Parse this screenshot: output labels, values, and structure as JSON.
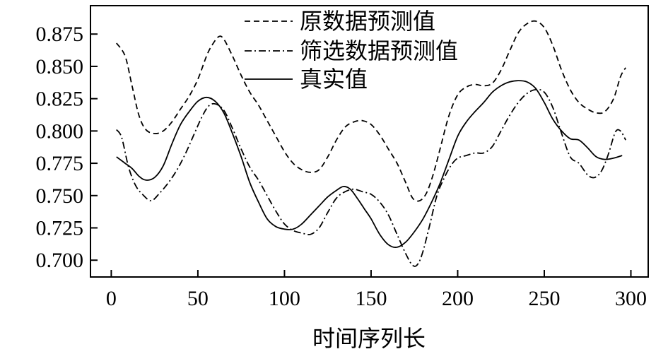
{
  "chart_data": {
    "type": "line",
    "title": "",
    "xlabel": "时间序列长",
    "ylabel": "",
    "xlim": [
      -12,
      310
    ],
    "ylim": [
      0.687,
      0.897
    ],
    "xticks": [
      0,
      50,
      100,
      150,
      200,
      250,
      300
    ],
    "yticks": [
      0.7,
      0.725,
      0.75,
      0.775,
      0.8,
      0.825,
      0.85,
      0.875
    ],
    "xtick_labels": [
      "0",
      "50",
      "100",
      "150",
      "200",
      "250",
      "300"
    ],
    "ytick_labels": [
      "0.700",
      "0.725",
      "0.750",
      "0.775",
      "0.800",
      "0.825",
      "0.850",
      "0.875"
    ],
    "grid": false,
    "legend_position": "top-center",
    "series": [
      {
        "name": "原数据预测值",
        "style": "dashed",
        "color": "#000000",
        "points": [
          [
            3,
            0.868
          ],
          [
            8,
            0.858
          ],
          [
            12,
            0.835
          ],
          [
            16,
            0.812
          ],
          [
            20,
            0.801
          ],
          [
            25,
            0.798
          ],
          [
            30,
            0.8
          ],
          [
            35,
            0.807
          ],
          [
            40,
            0.817
          ],
          [
            45,
            0.827
          ],
          [
            50,
            0.84
          ],
          [
            55,
            0.858
          ],
          [
            58,
            0.866
          ],
          [
            62,
            0.873
          ],
          [
            65,
            0.871
          ],
          [
            70,
            0.858
          ],
          [
            75,
            0.843
          ],
          [
            80,
            0.83
          ],
          [
            85,
            0.82
          ],
          [
            90,
            0.808
          ],
          [
            95,
            0.796
          ],
          [
            100,
            0.784
          ],
          [
            105,
            0.775
          ],
          [
            110,
            0.77
          ],
          [
            115,
            0.768
          ],
          [
            120,
            0.77
          ],
          [
            125,
            0.78
          ],
          [
            130,
            0.793
          ],
          [
            135,
            0.803
          ],
          [
            140,
            0.807
          ],
          [
            145,
            0.808
          ],
          [
            150,
            0.805
          ],
          [
            155,
            0.797
          ],
          [
            160,
            0.786
          ],
          [
            165,
            0.775
          ],
          [
            170,
            0.76
          ],
          [
            174,
            0.748
          ],
          [
            178,
            0.746
          ],
          [
            182,
            0.752
          ],
          [
            186,
            0.767
          ],
          [
            190,
            0.787
          ],
          [
            195,
            0.812
          ],
          [
            200,
            0.828
          ],
          [
            205,
            0.834
          ],
          [
            210,
            0.836
          ],
          [
            215,
            0.835
          ],
          [
            220,
            0.837
          ],
          [
            225,
            0.847
          ],
          [
            230,
            0.862
          ],
          [
            235,
            0.876
          ],
          [
            240,
            0.883
          ],
          [
            245,
            0.885
          ],
          [
            250,
            0.88
          ],
          [
            255,
            0.866
          ],
          [
            260,
            0.847
          ],
          [
            265,
            0.832
          ],
          [
            270,
            0.822
          ],
          [
            275,
            0.817
          ],
          [
            280,
            0.814
          ],
          [
            285,
            0.815
          ],
          [
            290,
            0.825
          ],
          [
            294,
            0.842
          ],
          [
            297,
            0.849
          ]
        ]
      },
      {
        "name": "筛选数据预测值",
        "style": "dashdot",
        "color": "#000000",
        "points": [
          [
            3,
            0.801
          ],
          [
            6,
            0.795
          ],
          [
            10,
            0.772
          ],
          [
            14,
            0.758
          ],
          [
            18,
            0.751
          ],
          [
            23,
            0.746
          ],
          [
            28,
            0.752
          ],
          [
            33,
            0.76
          ],
          [
            38,
            0.77
          ],
          [
            43,
            0.783
          ],
          [
            48,
            0.798
          ],
          [
            52,
            0.81
          ],
          [
            56,
            0.819
          ],
          [
            60,
            0.821
          ],
          [
            65,
            0.816
          ],
          [
            70,
            0.802
          ],
          [
            75,
            0.786
          ],
          [
            80,
            0.772
          ],
          [
            85,
            0.762
          ],
          [
            90,
            0.75
          ],
          [
            95,
            0.738
          ],
          [
            100,
            0.728
          ],
          [
            105,
            0.723
          ],
          [
            110,
            0.721
          ],
          [
            115,
            0.72
          ],
          [
            120,
            0.725
          ],
          [
            125,
            0.737
          ],
          [
            130,
            0.748
          ],
          [
            135,
            0.753
          ],
          [
            140,
            0.755
          ],
          [
            145,
            0.753
          ],
          [
            150,
            0.751
          ],
          [
            155,
            0.745
          ],
          [
            160,
            0.735
          ],
          [
            165,
            0.72
          ],
          [
            170,
            0.705
          ],
          [
            174,
            0.696
          ],
          [
            177,
            0.697
          ],
          [
            180,
            0.707
          ],
          [
            184,
            0.728
          ],
          [
            188,
            0.75
          ],
          [
            192,
            0.763
          ],
          [
            196,
            0.773
          ],
          [
            200,
            0.779
          ],
          [
            205,
            0.781
          ],
          [
            210,
            0.783
          ],
          [
            215,
            0.783
          ],
          [
            220,
            0.788
          ],
          [
            225,
            0.8
          ],
          [
            230,
            0.812
          ],
          [
            235,
            0.822
          ],
          [
            240,
            0.829
          ],
          [
            245,
            0.832
          ],
          [
            250,
            0.83
          ],
          [
            255,
            0.818
          ],
          [
            260,
            0.798
          ],
          [
            265,
            0.78
          ],
          [
            270,
            0.775
          ],
          [
            275,
            0.766
          ],
          [
            279,
            0.764
          ],
          [
            283,
            0.769
          ],
          [
            287,
            0.782
          ],
          [
            291,
            0.799
          ],
          [
            294,
            0.8
          ],
          [
            297,
            0.793
          ]
        ]
      },
      {
        "name": "真实值",
        "style": "solid",
        "color": "#000000",
        "points": [
          [
            3,
            0.78
          ],
          [
            8,
            0.775
          ],
          [
            12,
            0.771
          ],
          [
            16,
            0.765
          ],
          [
            20,
            0.762
          ],
          [
            25,
            0.764
          ],
          [
            30,
            0.773
          ],
          [
            35,
            0.79
          ],
          [
            40,
            0.805
          ],
          [
            45,
            0.815
          ],
          [
            50,
            0.823
          ],
          [
            55,
            0.826
          ],
          [
            60,
            0.823
          ],
          [
            65,
            0.814
          ],
          [
            70,
            0.798
          ],
          [
            75,
            0.78
          ],
          [
            80,
            0.76
          ],
          [
            85,
            0.745
          ],
          [
            90,
            0.732
          ],
          [
            95,
            0.726
          ],
          [
            100,
            0.724
          ],
          [
            105,
            0.724
          ],
          [
            110,
            0.728
          ],
          [
            115,
            0.735
          ],
          [
            120,
            0.742
          ],
          [
            125,
            0.749
          ],
          [
            130,
            0.754
          ],
          [
            134,
            0.757
          ],
          [
            138,
            0.755
          ],
          [
            142,
            0.748
          ],
          [
            146,
            0.74
          ],
          [
            150,
            0.732
          ],
          [
            155,
            0.72
          ],
          [
            160,
            0.712
          ],
          [
            165,
            0.71
          ],
          [
            170,
            0.714
          ],
          [
            175,
            0.722
          ],
          [
            180,
            0.732
          ],
          [
            185,
            0.745
          ],
          [
            190,
            0.76
          ],
          [
            195,
            0.778
          ],
          [
            200,
            0.796
          ],
          [
            205,
            0.807
          ],
          [
            210,
            0.815
          ],
          [
            215,
            0.822
          ],
          [
            220,
            0.83
          ],
          [
            225,
            0.835
          ],
          [
            230,
            0.838
          ],
          [
            235,
            0.839
          ],
          [
            240,
            0.838
          ],
          [
            245,
            0.833
          ],
          [
            250,
            0.822
          ],
          [
            255,
            0.809
          ],
          [
            260,
            0.8
          ],
          [
            265,
            0.794
          ],
          [
            270,
            0.793
          ],
          [
            275,
            0.787
          ],
          [
            280,
            0.78
          ],
          [
            285,
            0.778
          ],
          [
            290,
            0.779
          ],
          [
            295,
            0.781
          ]
        ]
      }
    ]
  }
}
